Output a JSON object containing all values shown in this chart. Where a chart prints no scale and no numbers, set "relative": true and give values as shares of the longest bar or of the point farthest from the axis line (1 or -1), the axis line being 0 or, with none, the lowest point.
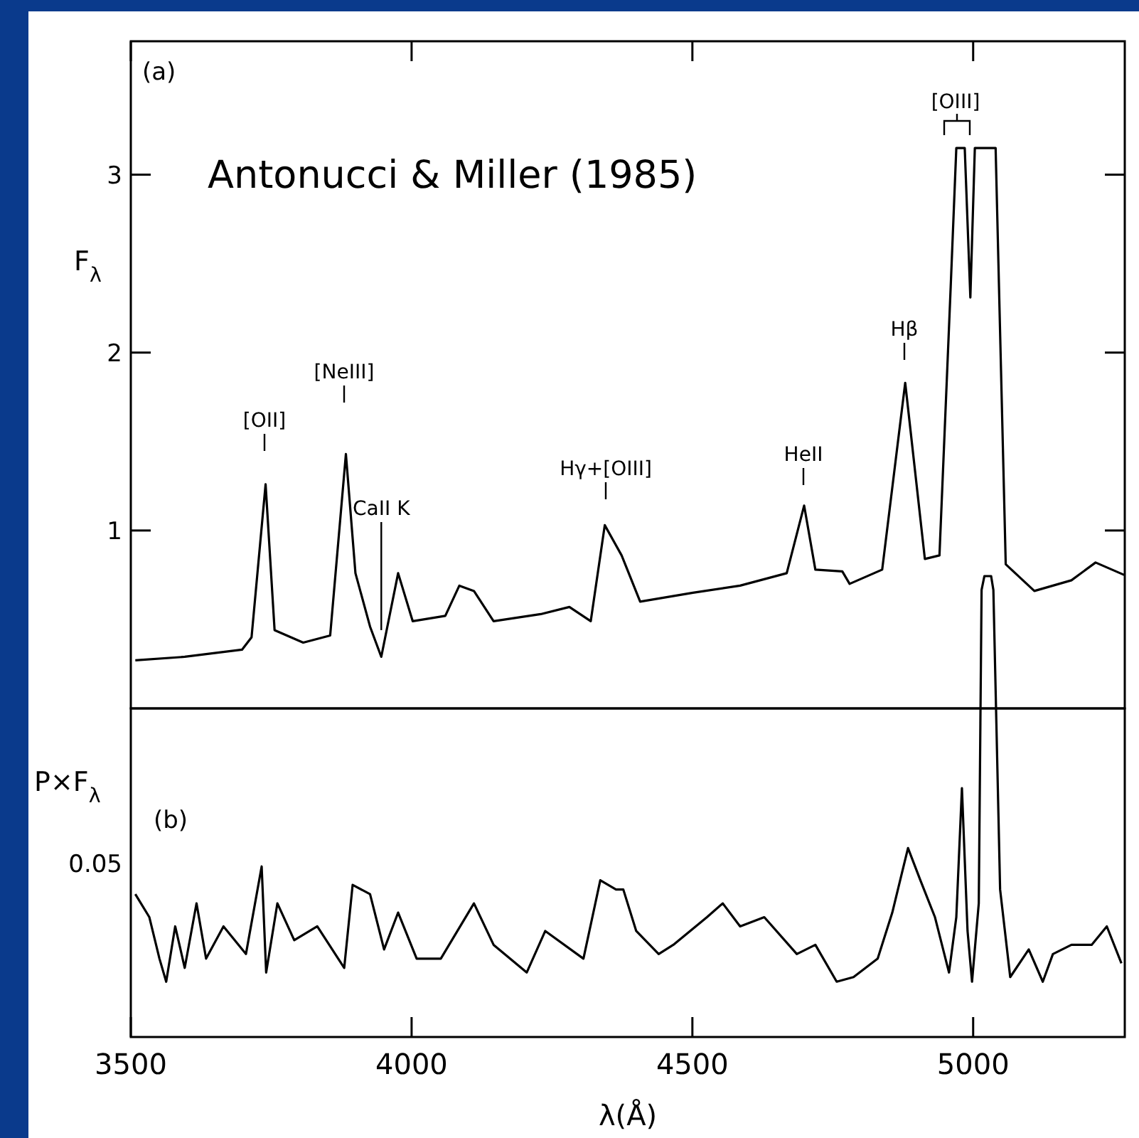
{
  "chart_data": [
    {
      "type": "line",
      "ylabel": "F$_{λ}$",
      "color": "#000000",
      "line_style": "solid",
      "marker": "none",
      "grid": false,
      "tick_labels": "y",
      "xlim": [
        3500,
        5270
      ],
      "xticks": [
        3500,
        4000,
        4500,
        5000
      ],
      "ylim": [
        0,
        3.75
      ],
      "yticks": [
        1,
        2,
        3
      ],
      "x": [
        3508,
        3596,
        3698,
        3715,
        3740,
        3756,
        3807,
        3855,
        3883,
        3900,
        3926,
        3946,
        3976,
        4002,
        4060,
        4085,
        4111,
        4146,
        4230,
        4281,
        4319,
        4344,
        4374,
        4407,
        4501,
        4585,
        4668,
        4699,
        4719,
        4767,
        4780,
        4838,
        4879,
        4914,
        4940,
        4960,
        4970,
        4985,
        4995,
        5003,
        5040,
        5058,
        5109,
        5175,
        5218,
        5269
      ],
      "values": [
        0.27,
        0.29,
        0.33,
        0.4,
        1.26,
        0.44,
        0.37,
        0.41,
        1.43,
        0.76,
        0.46,
        0.29,
        0.76,
        0.49,
        0.52,
        0.69,
        0.66,
        0.49,
        0.53,
        0.57,
        0.49,
        1.03,
        0.86,
        0.6,
        0.65,
        0.69,
        0.76,
        1.14,
        0.78,
        0.77,
        0.7,
        0.78,
        1.83,
        0.84,
        0.86,
        2.37,
        3.15,
        3.15,
        2.31,
        3.15,
        3.15,
        0.81,
        0.66,
        0.72,
        0.82,
        0.75
      ],
      "annotations": [
        "(a)",
        "Antonucci & Miller (1985)",
        "[OII]",
        "[NeIII]",
        {
          "text": "CaII K",
          "x": 3946,
          "y": 0.44
        },
        "Hγ+[OIII]",
        "HeII",
        "Hβ",
        "[OIII]"
      ]
    },
    {
      "type": "line",
      "ylabel": "P×F$_{λ}$",
      "xlabel": "λ(Å)",
      "color": "#000000",
      "line_style": "solid",
      "marker": "none",
      "grid": false,
      "relative": true,
      "xlim": [
        3500,
        5270
      ],
      "xticks": [
        3500,
        4000,
        4500,
        5000
      ],
      "x": [
        3508,
        3533,
        3551,
        3563,
        3579,
        3596,
        3617,
        3634,
        3665,
        3705,
        3733,
        3741,
        3761,
        3791,
        3832,
        3880,
        3895,
        3926,
        3951,
        3976,
        4009,
        4052,
        4111,
        4146,
        4205,
        4238,
        4306,
        4336,
        4364,
        4377,
        4400,
        4440,
        4466,
        4526,
        4554,
        4585,
        4628,
        4686,
        4719,
        4757,
        4787,
        4830,
        4856,
        4884,
        4906,
        4932,
        4957,
        4970,
        4980,
        4990,
        4998,
        5010,
        5015,
        5020,
        5032,
        5036,
        5048,
        5066,
        5099,
        5124,
        5142,
        5175,
        5211,
        5238,
        5264
      ],
      "values": [
        0.31,
        0.26,
        0.17,
        0.12,
        0.24,
        0.15,
        0.29,
        0.17,
        0.24,
        0.18,
        0.37,
        0.14,
        0.29,
        0.21,
        0.24,
        0.15,
        0.33,
        0.31,
        0.19,
        0.27,
        0.17,
        0.17,
        0.29,
        0.2,
        0.14,
        0.23,
        0.17,
        0.34,
        0.32,
        0.32,
        0.23,
        0.18,
        0.2,
        0.26,
        0.29,
        0.24,
        0.26,
        0.18,
        0.2,
        0.12,
        0.13,
        0.17,
        0.27,
        0.41,
        0.34,
        0.26,
        0.14,
        0.26,
        0.54,
        0.23,
        0.12,
        0.29,
        0.97,
        1.0,
        1.0,
        0.97,
        0.32,
        0.13,
        0.19,
        0.12,
        0.18,
        0.2,
        0.2,
        0.24,
        0.16
      ],
      "annotations": [
        "(b)",
        "0.05"
      ]
    }
  ]
}
